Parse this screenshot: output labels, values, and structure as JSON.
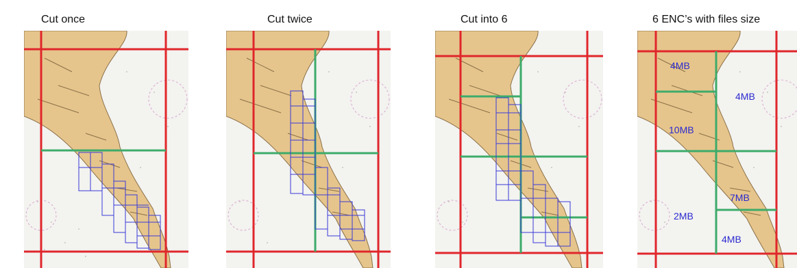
{
  "titles": [
    "Cut once",
    "Cut twice",
    "Cut into 6",
    "6 ENC’s with files size"
  ],
  "file_sizes": [
    "4MB",
    "4MB",
    "10MB",
    "7MB",
    "2MB",
    "4MB"
  ],
  "colors": {
    "sea": "#f3f3f0",
    "land": "#e6c58c",
    "land_edge": "#8a7048",
    "red_cut": "#e0262b",
    "green_cut": "#3dab6a",
    "blue_grid": "#3a3ad8",
    "label_text": "#2a2ad0"
  }
}
